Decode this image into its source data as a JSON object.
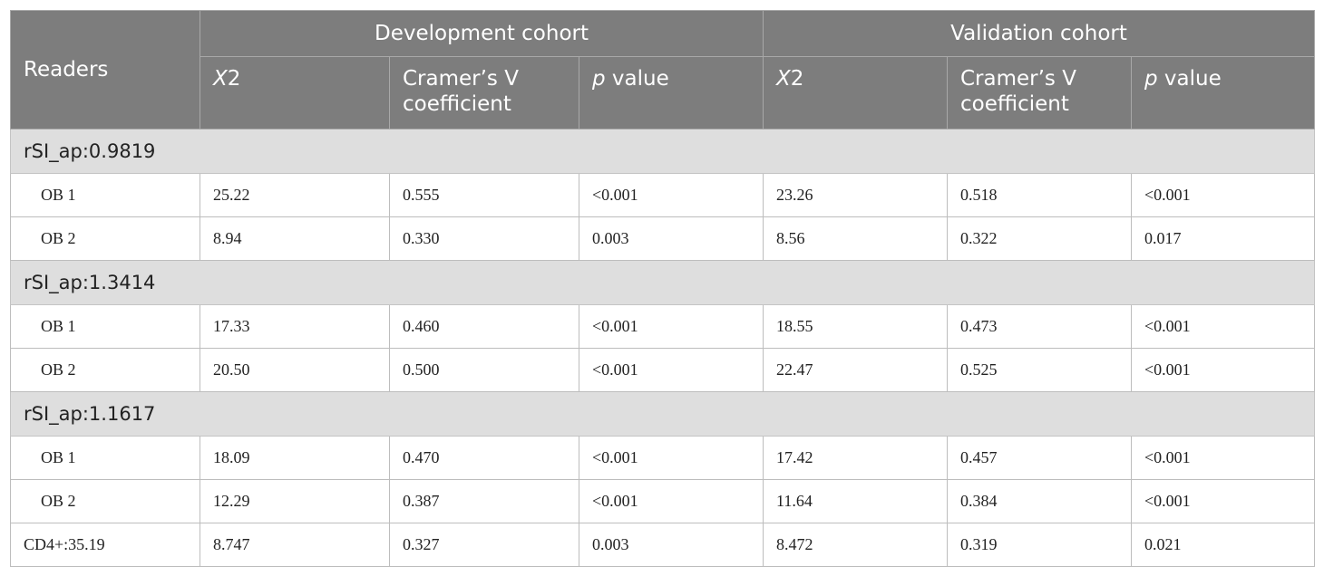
{
  "header": {
    "readers": "Readers",
    "groups": [
      "Development cohort",
      "Validation cohort"
    ],
    "sub_columns": [
      {
        "italic": "X",
        "rest": "2"
      },
      {
        "italic": "",
        "rest": "Cramer’s V coefficient"
      },
      {
        "italic": "p",
        "rest": " value"
      },
      {
        "italic": "X",
        "rest": "2"
      },
      {
        "italic": "",
        "rest": "Cramer’s V coefficient"
      },
      {
        "italic": "p",
        "rest": " value"
      }
    ]
  },
  "sections": [
    {
      "title": "rSI_ap:0.9819",
      "rows": [
        {
          "label": "OB 1",
          "values": [
            "25.22",
            "0.555",
            "<0.001",
            "23.26",
            "0.518",
            "<0.001"
          ]
        },
        {
          "label": "OB 2",
          "values": [
            "8.94",
            "0.330",
            "0.003",
            "8.56",
            "0.322",
            "0.017"
          ]
        }
      ]
    },
    {
      "title": "rSI_ap:1.3414",
      "rows": [
        {
          "label": "OB 1",
          "values": [
            "17.33",
            "0.460",
            "<0.001",
            "18.55",
            "0.473",
            "<0.001"
          ]
        },
        {
          "label": "OB 2",
          "values": [
            "20.50",
            "0.500",
            "<0.001",
            "22.47",
            "0.525",
            "<0.001"
          ]
        }
      ]
    },
    {
      "title": "rSI_ap:1.1617",
      "rows": [
        {
          "label": "OB 1",
          "values": [
            "18.09",
            "0.470",
            "<0.001",
            "17.42",
            "0.457",
            "<0.001"
          ]
        },
        {
          "label": "OB 2",
          "values": [
            "12.29",
            "0.387",
            "<0.001",
            "11.64",
            "0.384",
            "<0.001"
          ]
        }
      ]
    }
  ],
  "final_row": {
    "label": "CD4+:35.19",
    "values": [
      "8.747",
      "0.327",
      "0.003",
      "8.472",
      "0.319",
      "0.021"
    ]
  }
}
